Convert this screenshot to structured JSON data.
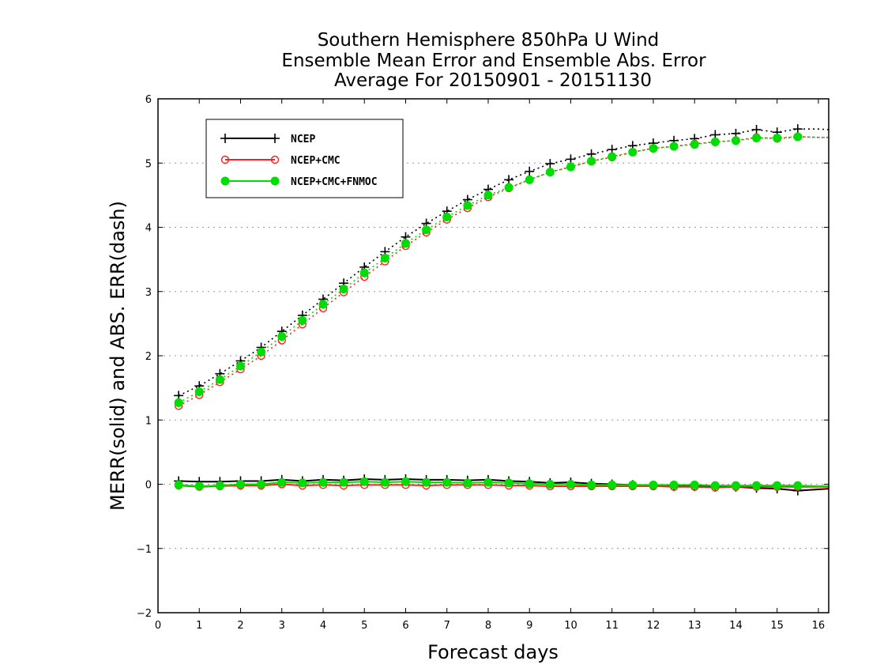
{
  "chart_data": {
    "type": "line",
    "title_lines": [
      "Southern Hemisphere 850hPa U Wind",
      "Ensemble Mean Error and Ensemble Abs. Error",
      "Average For 20150901 - 20151130"
    ],
    "xlabel": "Forecast days",
    "ylabel": "MERR(solid) and ABS. ERR(dash)",
    "xlim": [
      0,
      16.25
    ],
    "ylim": [
      -2,
      6
    ],
    "x_ticks": [
      "0",
      "1",
      "2",
      "3",
      "4",
      "5",
      "6",
      "7",
      "8",
      "9",
      "10",
      "11",
      "12",
      "13",
      "14",
      "15",
      "16"
    ],
    "y_ticks": [
      "6",
      "5",
      "4",
      "3",
      "2",
      "1",
      "0",
      "−1",
      "−2"
    ],
    "grid": "horizontal dotted",
    "legend_position": "top-left",
    "x": [
      0.5,
      1,
      1.5,
      2,
      2.5,
      3,
      3.5,
      4,
      4.5,
      5,
      5.5,
      6,
      6.5,
      7,
      7.5,
      8,
      8.5,
      9,
      9.5,
      10,
      10.5,
      11,
      11.5,
      12,
      12.5,
      13,
      13.5,
      14,
      14.5,
      15,
      15.5,
      16,
      16.25
    ],
    "series": [
      {
        "name": "NCEP",
        "color": "#000000",
        "marker": "plus",
        "merr": [
          0.05,
          0.04,
          0.04,
          0.05,
          0.05,
          0.07,
          0.05,
          0.07,
          0.06,
          0.08,
          0.07,
          0.08,
          0.07,
          0.07,
          0.06,
          0.07,
          0.05,
          0.04,
          0.02,
          0.03,
          0.01,
          0.0,
          -0.01,
          -0.02,
          -0.03,
          -0.03,
          -0.04,
          -0.04,
          -0.06,
          -0.07,
          -0.1,
          -0.08,
          -0.07
        ],
        "abs_err": [
          1.38,
          1.53,
          1.72,
          1.92,
          2.13,
          2.38,
          2.63,
          2.88,
          3.13,
          3.38,
          3.62,
          3.85,
          4.06,
          4.25,
          4.43,
          4.59,
          4.74,
          4.87,
          4.99,
          5.06,
          5.14,
          5.21,
          5.27,
          5.31,
          5.35,
          5.38,
          5.44,
          5.46,
          5.52,
          5.48,
          5.53,
          5.53,
          5.52
        ]
      },
      {
        "name": "NCEP+CMC",
        "color": "#ff2020",
        "marker": "open-circle",
        "merr": [
          -0.02,
          -0.04,
          -0.03,
          -0.02,
          -0.02,
          0.0,
          -0.02,
          -0.01,
          -0.02,
          -0.01,
          -0.01,
          -0.01,
          -0.02,
          -0.01,
          -0.01,
          -0.01,
          -0.02,
          -0.02,
          -0.03,
          -0.03,
          -0.03,
          -0.03,
          -0.03,
          -0.03,
          -0.04,
          -0.04,
          -0.05,
          -0.04,
          -0.04,
          -0.04,
          -0.04,
          -0.04,
          -0.04
        ],
        "abs_err": [
          1.22,
          1.39,
          1.59,
          1.79,
          2.0,
          2.24,
          2.49,
          2.74,
          2.99,
          3.23,
          3.47,
          3.71,
          3.92,
          4.12,
          4.3,
          4.47,
          4.61,
          4.74,
          4.86,
          4.94,
          5.03,
          5.09,
          5.17,
          5.23,
          5.26,
          5.3,
          5.33,
          5.35,
          5.4,
          5.38,
          5.41,
          5.4,
          5.4
        ]
      },
      {
        "name": "NCEP+CMC+FNMOC",
        "color": "#00dd00",
        "marker": "filled-circle",
        "merr": [
          -0.01,
          -0.03,
          -0.02,
          0.0,
          0.0,
          0.03,
          0.02,
          0.03,
          0.03,
          0.04,
          0.03,
          0.04,
          0.03,
          0.03,
          0.02,
          0.03,
          0.02,
          0.01,
          0.0,
          0.0,
          -0.01,
          -0.01,
          -0.01,
          -0.01,
          -0.01,
          -0.01,
          -0.02,
          -0.02,
          -0.02,
          -0.02,
          -0.02,
          -0.03,
          -0.03
        ],
        "abs_err": [
          1.27,
          1.44,
          1.63,
          1.84,
          2.06,
          2.3,
          2.55,
          2.8,
          3.04,
          3.29,
          3.52,
          3.75,
          3.96,
          4.16,
          4.34,
          4.5,
          4.62,
          4.74,
          4.86,
          4.94,
          5.03,
          5.1,
          5.17,
          5.23,
          5.26,
          5.29,
          5.33,
          5.35,
          5.39,
          5.39,
          5.41,
          5.4,
          5.4
        ]
      }
    ]
  }
}
